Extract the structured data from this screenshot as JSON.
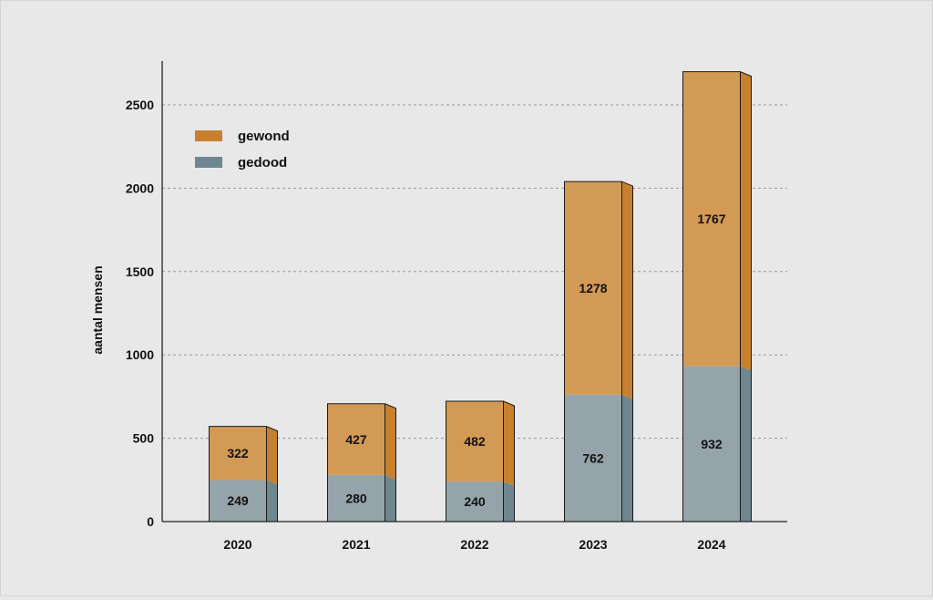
{
  "chart_data": {
    "type": "bar",
    "stacked": true,
    "categories": [
      "2020",
      "2021",
      "2022",
      "2023",
      "2024"
    ],
    "series": [
      {
        "name": "gedood",
        "values": [
          249,
          280,
          240,
          762,
          932
        ],
        "color": "#94a4aa",
        "side_color": "#6f8790"
      },
      {
        "name": "gewond",
        "values": [
          322,
          427,
          482,
          1278,
          1767
        ],
        "color": "#d39a55",
        "side_color": "#c7812e"
      }
    ],
    "legend_order": [
      "gewond",
      "gedood"
    ],
    "ylabel": "aantal mensen",
    "xlabel": "",
    "ylim": [
      0,
      2750
    ],
    "yticks": [
      0,
      500,
      1000,
      1500,
      2000,
      2500
    ],
    "grid": true,
    "legend_position": "top-left"
  }
}
